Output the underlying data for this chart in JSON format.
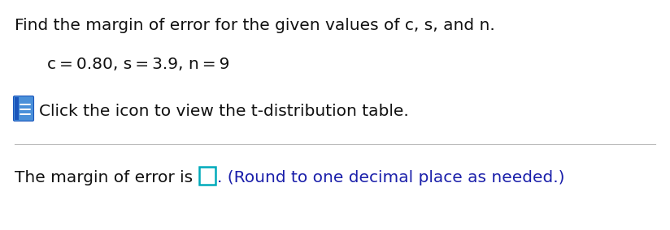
{
  "line1": "Find the margin of error for the given values of c, s, and n.",
  "line2": "c = 0.80, s = 3.9, n = 9",
  "line3": "Click the icon to view the t-distribution table.",
  "line4_prefix": "The margin of error is ",
  "line4_suffix": ". (Round to one decimal place as needed.)",
  "bg_color": "#ffffff",
  "text_color_black": "#111111",
  "text_color_blue": "#1a1faa",
  "icon_blue_light": "#4a90d9",
  "icon_blue_dark": "#1a55bb",
  "box_border_color": "#00aabb",
  "separator_color": "#bbbbbb",
  "font_size": 14.5,
  "fig_width": 8.24,
  "fig_height": 2.84,
  "dpi": 100
}
